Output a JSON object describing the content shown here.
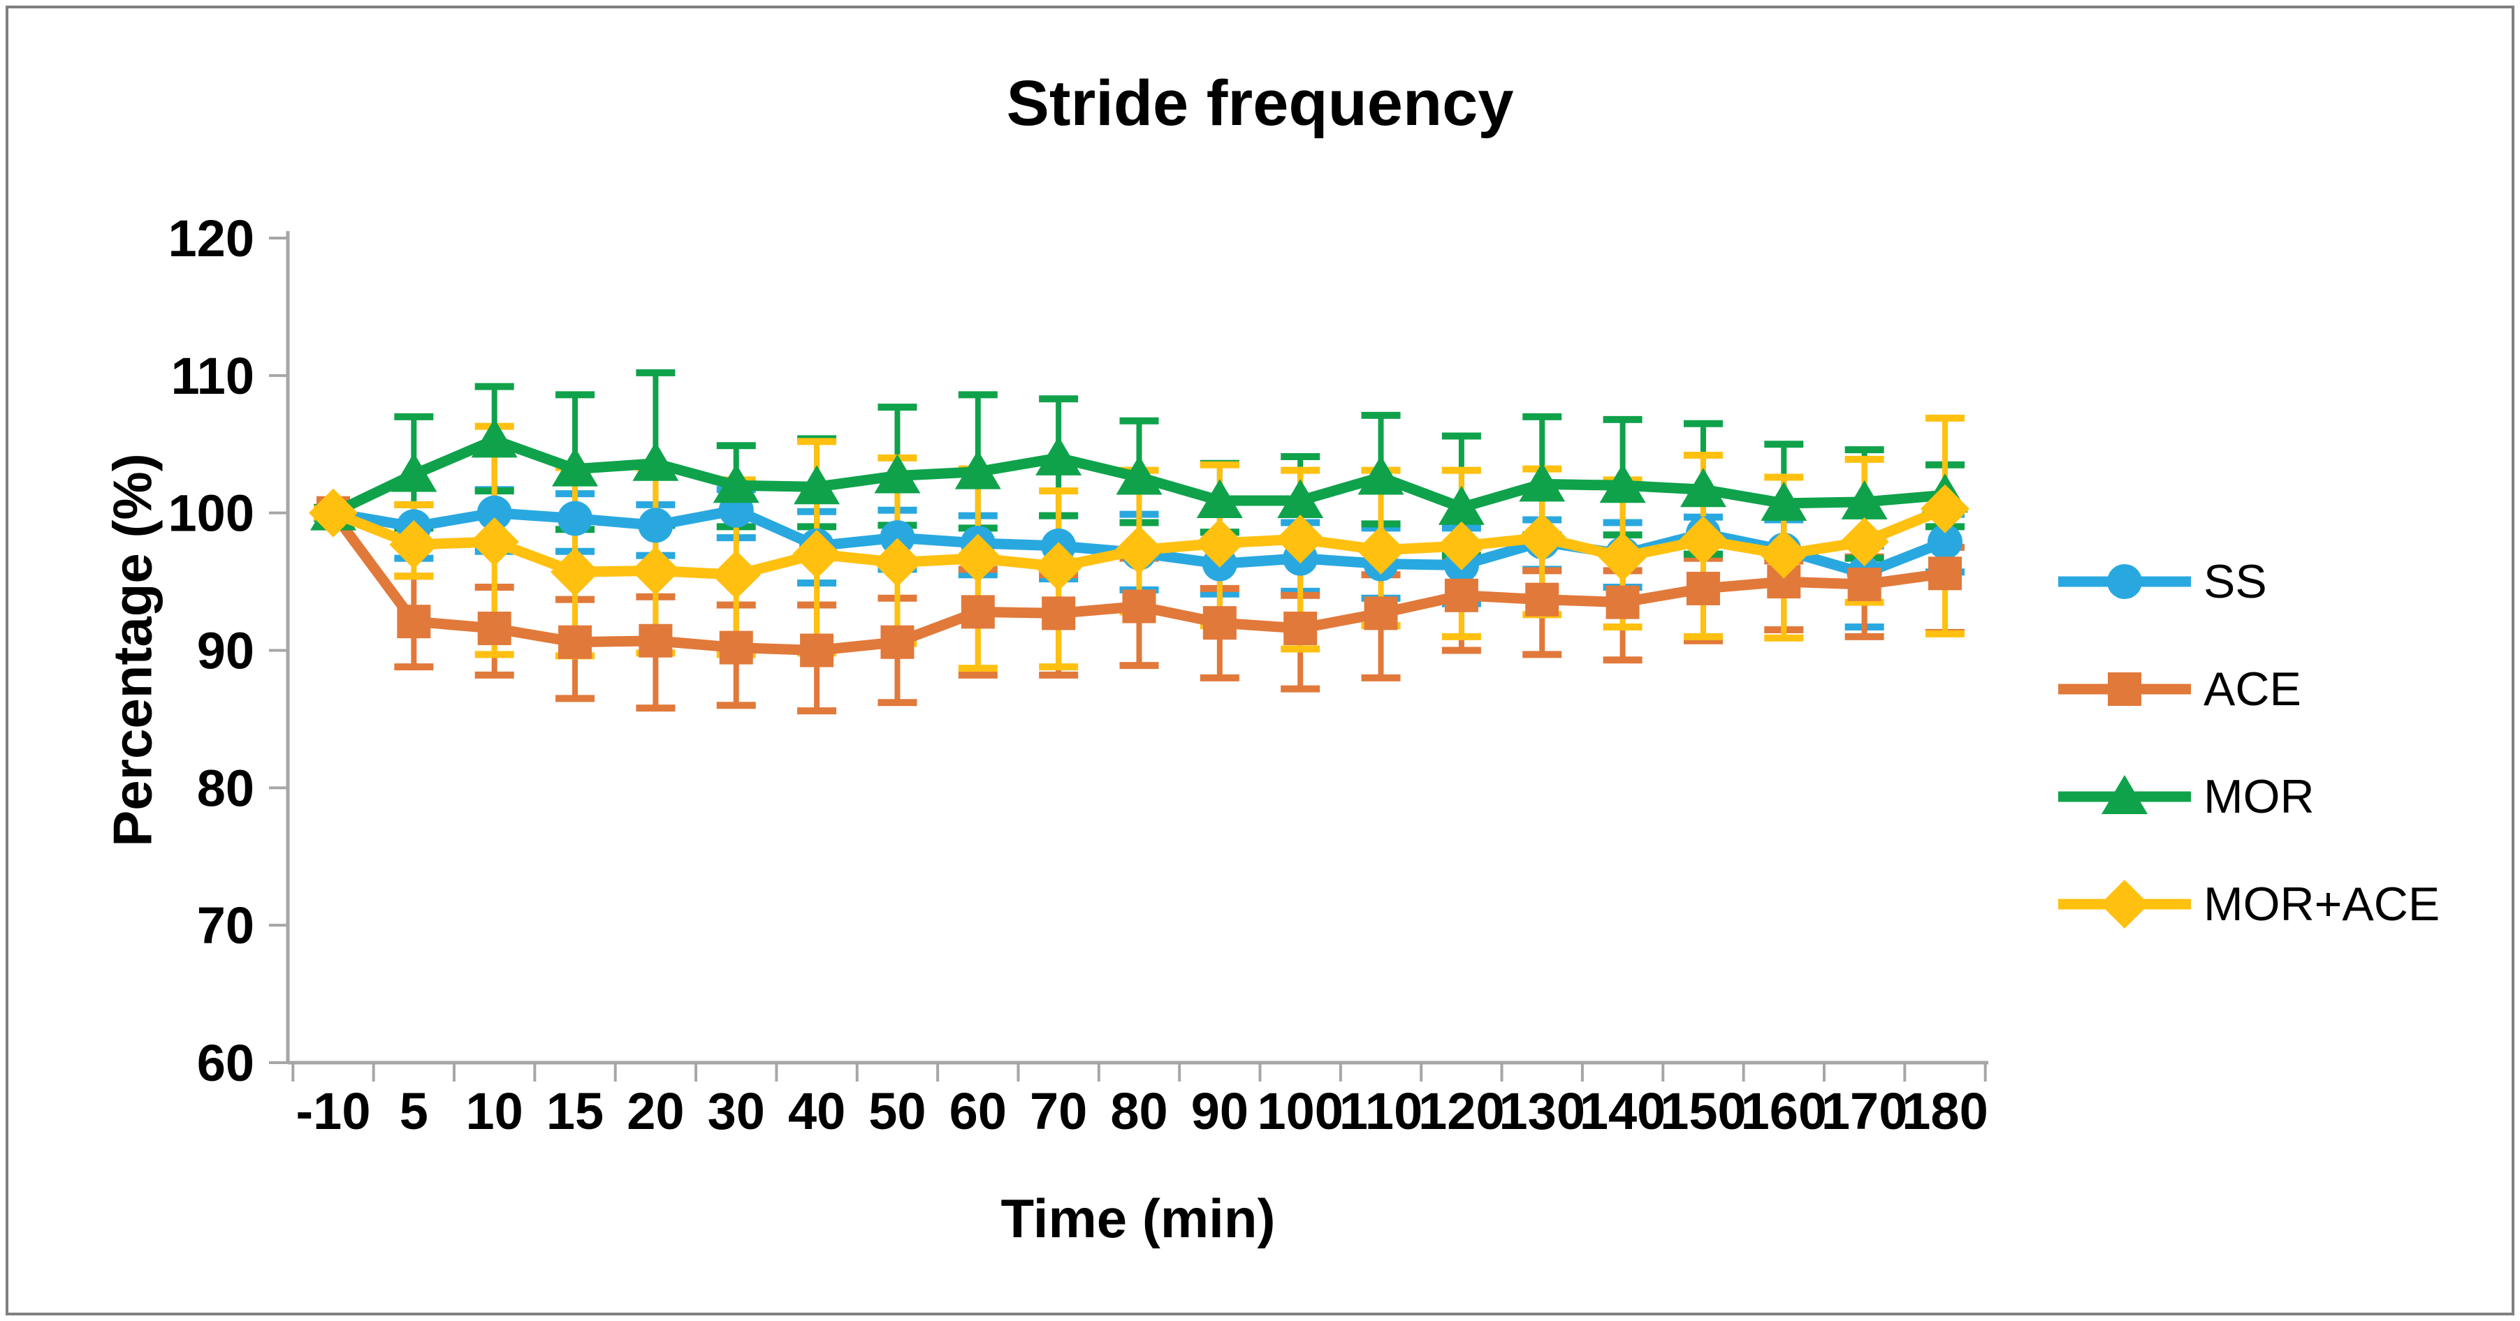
{
  "chart_data": {
    "type": "line",
    "title": "Stride frequency",
    "xlabel": "Time (min)",
    "ylabel": "Percentage (%)",
    "ylim": [
      60,
      120
    ],
    "ytick_step": 10,
    "yticks": [
      60,
      70,
      80,
      90,
      100,
      110,
      120
    ],
    "grid": false,
    "legend_position": "right",
    "categories": [
      "-10",
      "5",
      "10",
      "15",
      "20",
      "30",
      "40",
      "50",
      "60",
      "70",
      "80",
      "90",
      "100",
      "110",
      "120",
      "130",
      "140",
      "150",
      "160",
      "170",
      "180"
    ],
    "series": [
      {
        "name": "SS",
        "color": "#29A8E0",
        "marker": "circle",
        "values": [
          100,
          99.0,
          100.0,
          99.6,
          99.1,
          100.2,
          97.6,
          98.2,
          97.8,
          97.6,
          97.1,
          96.3,
          96.7,
          96.3,
          96.2,
          97.9,
          97.0,
          98.5,
          97.3,
          95.6,
          97.9
        ],
        "err_up": [
          0.3,
          1.6,
          1.7,
          1.8,
          1.5,
          1.5,
          2.5,
          2.0,
          2.0,
          2.2,
          2.8,
          2.3,
          2.6,
          2.6,
          2.7,
          1.6,
          2.3,
          1.2,
          2.2,
          2.0,
          2.0
        ],
        "err_dn": [
          0.3,
          2.3,
          2.8,
          2.4,
          2.2,
          2.0,
          2.7,
          2.3,
          2.3,
          2.4,
          2.7,
          2.2,
          2.4,
          2.5,
          2.8,
          2.0,
          2.4,
          1.5,
          2.3,
          3.9,
          2.2
        ]
      },
      {
        "name": "ACE",
        "color": "#E1793A",
        "marker": "square",
        "values": [
          100,
          92.1,
          91.6,
          90.6,
          90.7,
          90.2,
          90.0,
          90.6,
          92.8,
          92.7,
          93.2,
          92.0,
          91.6,
          92.7,
          94.0,
          93.7,
          93.5,
          94.5,
          95.0,
          94.8,
          95.6
        ],
        "err_up": [
          0.3,
          3.3,
          3.0,
          3.1,
          3.2,
          3.1,
          3.3,
          3.2,
          3.1,
          2.8,
          3.5,
          2.5,
          2.4,
          2.8,
          2.6,
          2.1,
          2.3,
          2.2,
          1.5,
          2.0,
          1.9
        ],
        "err_dn": [
          0.3,
          3.3,
          3.4,
          4.1,
          4.9,
          4.2,
          4.4,
          4.4,
          4.6,
          4.5,
          4.3,
          4.0,
          4.4,
          4.7,
          4.0,
          4.0,
          4.2,
          3.8,
          3.5,
          3.8,
          4.3
        ]
      },
      {
        "name": "MOR",
        "color": "#0FA24B",
        "marker": "triangle",
        "values": [
          100,
          102.8,
          105.3,
          103.2,
          103.6,
          102.0,
          101.9,
          102.7,
          103.0,
          104.0,
          102.6,
          100.9,
          100.9,
          102.6,
          100.4,
          102.1,
          102.0,
          101.7,
          100.7,
          100.8,
          101.3
        ],
        "err_up": [
          0.4,
          4.2,
          3.9,
          5.4,
          6.6,
          2.9,
          3.5,
          5.0,
          5.6,
          4.3,
          4.1,
          2.7,
          3.2,
          4.5,
          5.2,
          4.9,
          4.8,
          4.8,
          4.3,
          3.8,
          2.2
        ],
        "err_dn": [
          0.4,
          3.9,
          3.7,
          4.4,
          4.5,
          3.0,
          2.9,
          3.6,
          4.1,
          4.2,
          3.3,
          2.3,
          2.9,
          3.4,
          3.5,
          3.7,
          3.6,
          4.7,
          3.9,
          4.1,
          2.3
        ]
      },
      {
        "name": "MOR+ACE",
        "color": "#FFC010",
        "marker": "diamond",
        "values": [
          100,
          97.7,
          97.9,
          95.7,
          95.8,
          95.5,
          97.0,
          96.4,
          96.7,
          96.1,
          97.3,
          97.8,
          98.1,
          97.3,
          97.6,
          98.2,
          96.8,
          98.0,
          97.0,
          97.9,
          100.3
        ],
        "err_up": [
          0.3,
          2.9,
          8.4,
          7.6,
          7.5,
          6.9,
          8.2,
          7.6,
          6.5,
          5.5,
          5.8,
          5.7,
          5.0,
          5.8,
          5.5,
          5.0,
          5.6,
          6.2,
          5.6,
          6.0,
          6.6
        ],
        "err_dn": [
          0.3,
          2.3,
          8.2,
          6.1,
          6.0,
          5.8,
          7.2,
          5.9,
          8.0,
          7.3,
          4.5,
          6.0,
          8.0,
          5.5,
          6.6,
          5.6,
          5.1,
          7.0,
          6.1,
          4.4,
          9.1
        ]
      }
    ]
  }
}
